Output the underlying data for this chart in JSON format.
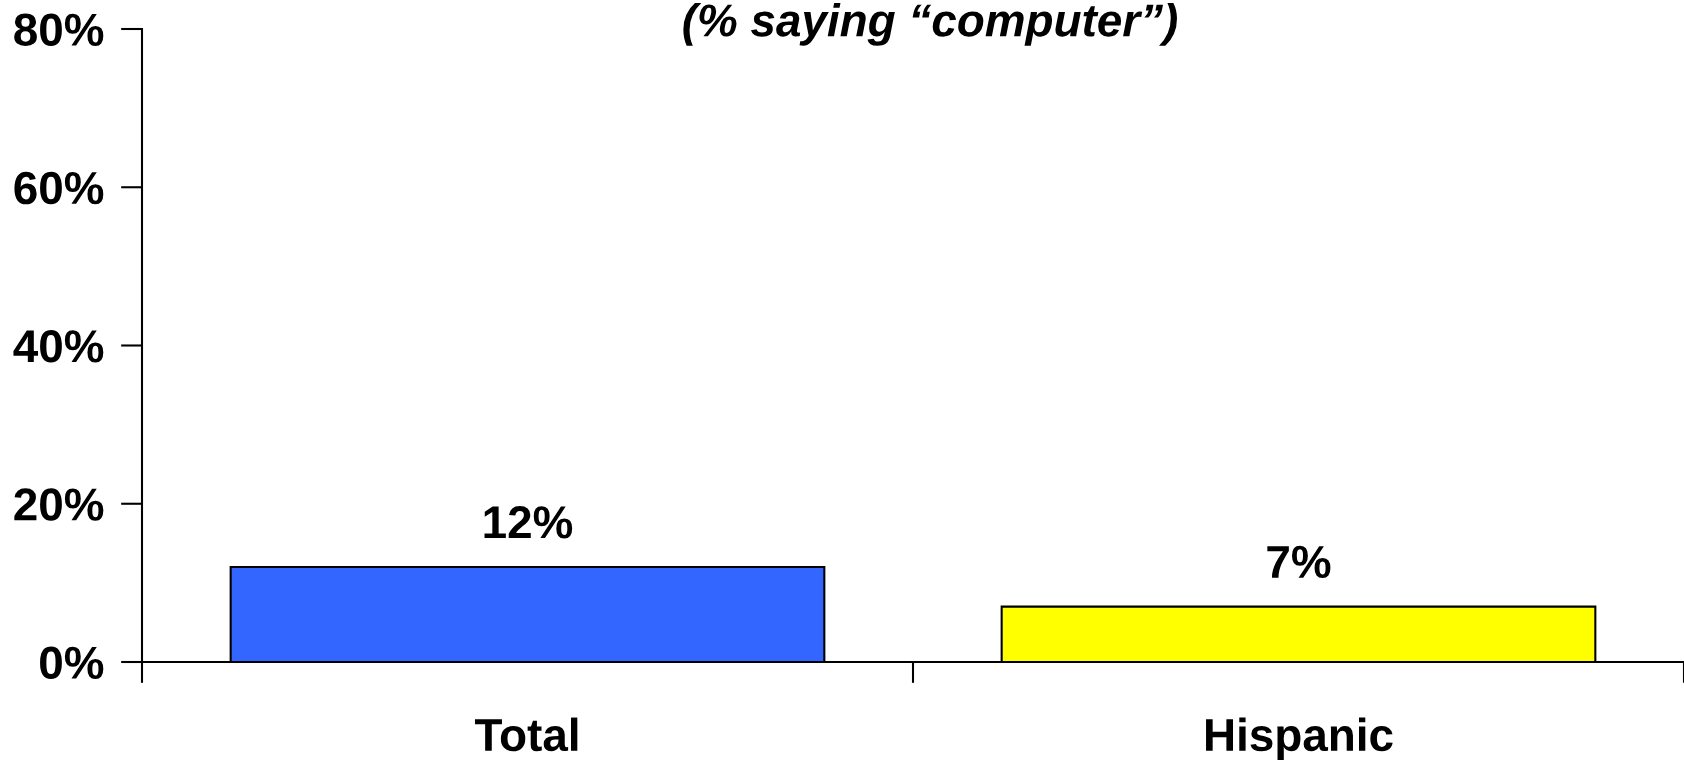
{
  "chart_data": {
    "type": "bar",
    "title": "(% saying “computer”)",
    "categories": [
      "Total",
      "Hispanic"
    ],
    "values": [
      12,
      7
    ],
    "colors": [
      "#3366ff",
      "#ffff00"
    ],
    "value_labels": [
      "12%",
      "7%"
    ],
    "ylim": [
      0,
      80
    ],
    "yticks": [
      {
        "value": 0,
        "label": "0%"
      },
      {
        "value": 20,
        "label": "20%"
      },
      {
        "value": 40,
        "label": "40%"
      },
      {
        "value": 60,
        "label": "60%"
      },
      {
        "value": 80,
        "label": "80%"
      }
    ]
  }
}
